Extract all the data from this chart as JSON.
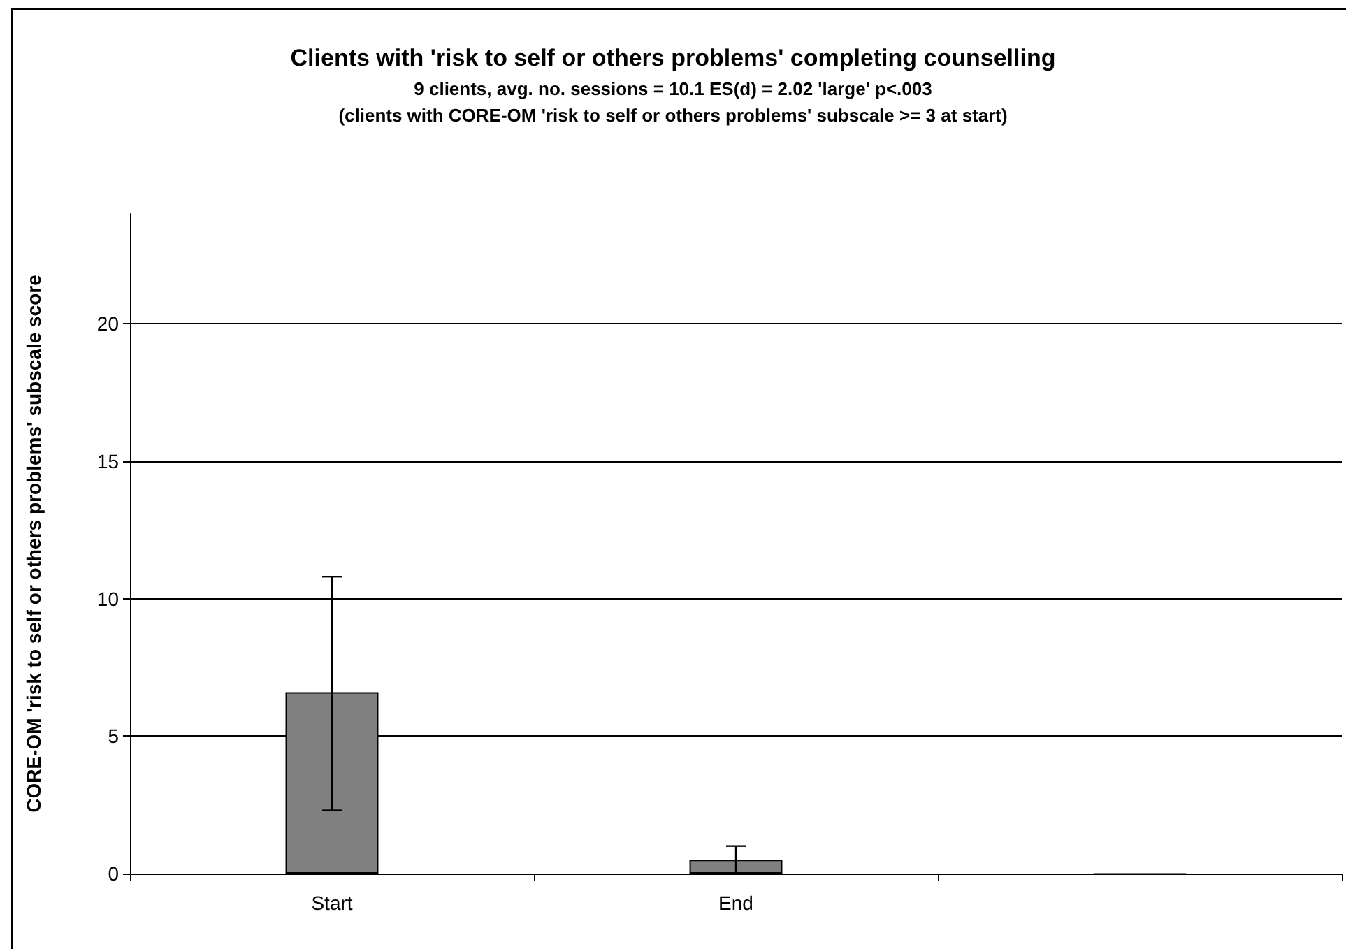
{
  "chart_data": {
    "type": "bar",
    "title": "Clients with 'risk to self or others problems' completing counselling",
    "subtitle": "9 clients, avg. no. sessions = 10.1 ES(d) = 2.02 'large' p<.003\n(clients with CORE-OM 'risk to self or others problems' subscale >= 3 at start)",
    "ylabel": "CORE-OM 'risk to self or others problems' subscale score",
    "categories": [
      "Start",
      "End",
      null
    ],
    "values": [
      6.6,
      0.5,
      0
    ],
    "errors": [
      [
        2.3,
        10.8
      ],
      [
        0,
        1.0
      ],
      null
    ],
    "color": "#808080",
    "ylim": [
      0,
      24
    ],
    "yticks": [
      0,
      5,
      10,
      15,
      20
    ],
    "grid": "y"
  }
}
